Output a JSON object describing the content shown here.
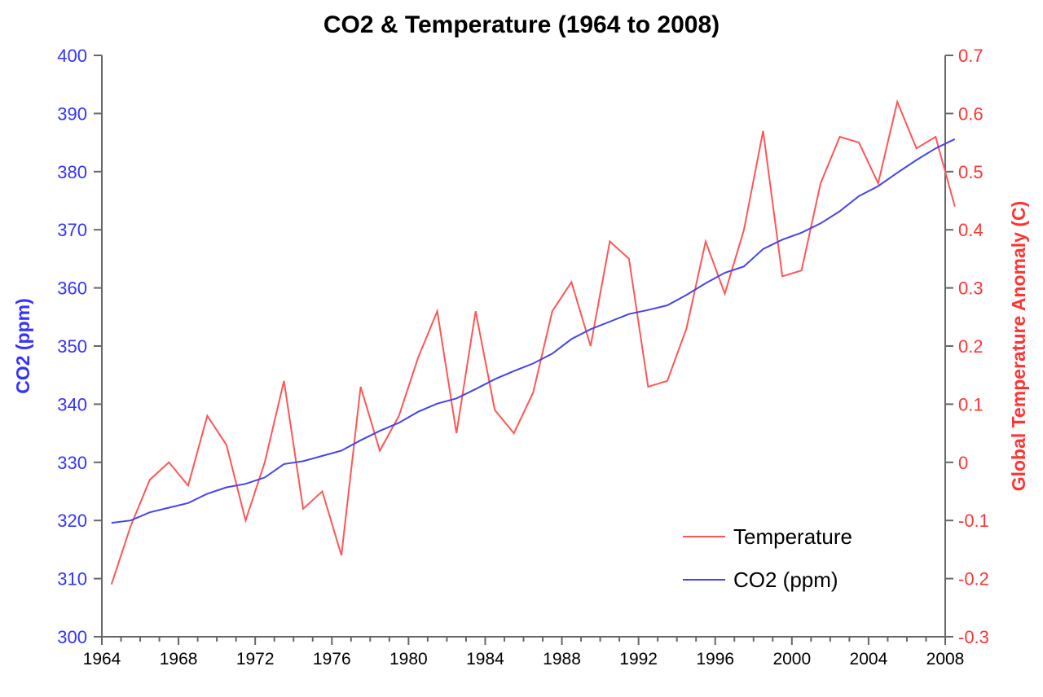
{
  "chart_data": {
    "type": "line",
    "title": "CO2 & Temperature (1964 to 2008)",
    "xlabel": "",
    "xlim": [
      1964,
      2008
    ],
    "x_ticks": [
      "1964",
      "1968",
      "1972",
      "1976",
      "1980",
      "1984",
      "1988",
      "1992",
      "1996",
      "2000",
      "2004",
      "2008"
    ],
    "y_left": {
      "label": "CO2 (ppm)",
      "ylim": [
        300,
        400
      ],
      "ticks": [
        "300",
        "310",
        "320",
        "330",
        "340",
        "350",
        "360",
        "370",
        "380",
        "390",
        "400"
      ],
      "color": "#3333ff"
    },
    "y_right": {
      "label": "Global Temperature Anomaly (C)",
      "ylim": [
        -0.3,
        0.7
      ],
      "ticks": [
        "-0.3",
        "-0.2",
        "-0.1",
        "0",
        "0.1",
        "0.2",
        "0.3",
        "0.4",
        "0.5",
        "0.6",
        "0.7"
      ],
      "color": "#ff3333"
    },
    "series": [
      {
        "name": "Temperature",
        "axis": "right",
        "color": "#ff5555",
        "x": [
          1964.5,
          1965.5,
          1966.5,
          1967.5,
          1968.5,
          1969.5,
          1970.5,
          1971.5,
          1972.5,
          1973.5,
          1974.5,
          1975.5,
          1976.5,
          1977.5,
          1978.5,
          1979.5,
          1980.5,
          1981.5,
          1982.5,
          1983.5,
          1984.5,
          1985.5,
          1986.5,
          1987.5,
          1988.5,
          1989.5,
          1990.5,
          1991.5,
          1992.5,
          1993.5,
          1994.5,
          1995.5,
          1996.5,
          1997.5,
          1998.5,
          1999.5,
          2000.5,
          2001.5,
          2002.5,
          2003.5,
          2004.5,
          2005.5,
          2006.5,
          2007.5,
          2008.5
        ],
        "values": [
          -0.21,
          -0.11,
          -0.03,
          0.0,
          -0.04,
          0.08,
          0.03,
          -0.1,
          0.0,
          0.14,
          -0.08,
          -0.05,
          -0.16,
          0.13,
          0.02,
          0.08,
          0.18,
          0.26,
          0.05,
          0.26,
          0.09,
          0.05,
          0.12,
          0.26,
          0.31,
          0.2,
          0.38,
          0.35,
          0.13,
          0.14,
          0.23,
          0.38,
          0.29,
          0.4,
          0.57,
          0.32,
          0.33,
          0.48,
          0.56,
          0.55,
          0.48,
          0.62,
          0.54,
          0.56,
          0.44
        ]
      },
      {
        "name": "CO2 (ppm)",
        "axis": "left",
        "color": "#4444ee",
        "x": [
          1964.5,
          1965.5,
          1966.5,
          1967.5,
          1968.5,
          1969.5,
          1970.5,
          1971.5,
          1972.5,
          1973.5,
          1974.5,
          1975.5,
          1976.5,
          1977.5,
          1978.5,
          1979.5,
          1980.5,
          1981.5,
          1982.5,
          1983.5,
          1984.5,
          1985.5,
          1986.5,
          1987.5,
          1988.5,
          1989.5,
          1990.5,
          1991.5,
          1992.5,
          1993.5,
          1994.5,
          1995.5,
          1996.5,
          1997.5,
          1998.5,
          1999.5,
          2000.5,
          2001.5,
          2002.5,
          2003.5,
          2004.5,
          2005.5,
          2006.5,
          2007.5,
          2008.5
        ],
        "values": [
          319.6,
          320.0,
          321.4,
          322.2,
          323.0,
          324.6,
          325.7,
          326.3,
          327.4,
          329.7,
          330.2,
          331.1,
          332.0,
          333.8,
          335.4,
          336.8,
          338.7,
          340.1,
          341.0,
          342.6,
          344.3,
          345.7,
          347.0,
          348.7,
          351.2,
          352.9,
          354.2,
          355.5,
          356.2,
          357.0,
          358.8,
          360.8,
          362.6,
          363.7,
          366.7,
          368.3,
          369.5,
          371.1,
          373.2,
          375.8,
          377.5,
          379.8,
          382.0,
          384.0,
          385.6
        ]
      }
    ],
    "legend": {
      "position": "bottom-right",
      "entries": [
        {
          "label": "Temperature",
          "color": "#ff5555"
        },
        {
          "label": "CO2 (ppm)",
          "color": "#4444ee"
        }
      ]
    }
  }
}
